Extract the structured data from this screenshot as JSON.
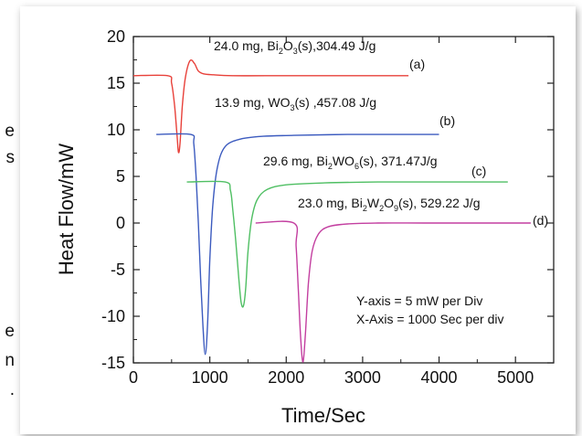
{
  "page_edge_text": [
    "e",
    "s",
    "e",
    "n",
    "."
  ],
  "chart_data": {
    "type": "line",
    "title": "",
    "xlabel": "Time/Sec",
    "ylabel": "Heat Flow/mW",
    "xlim": [
      0,
      5500
    ],
    "ylim": [
      -15,
      20
    ],
    "xticks": [
      "0",
      "1000",
      "2000",
      "3000",
      "4000",
      "5000"
    ],
    "yticks": [
      "20",
      "15",
      "10",
      "5",
      "0",
      "-5",
      "-10",
      "-15"
    ],
    "grid": false,
    "series": [
      {
        "name": "(a)",
        "color": "#e8413a",
        "x": [
          0,
          450,
          500,
          540,
          570,
          590,
          610,
          640,
          680,
          740,
          800,
          850,
          920,
          1050,
          1300,
          2000,
          2800,
          3600
        ],
        "y": [
          15.8,
          15.8,
          15.0,
          12.5,
          9.5,
          7.6,
          8.5,
          12.5,
          15.6,
          17.4,
          17.1,
          16.3,
          16.0,
          15.9,
          15.8,
          15.8,
          15.8,
          15.8
        ]
      },
      {
        "name": "(b)",
        "color": "#3c5bbf",
        "x": [
          300,
          750,
          790,
          820,
          850,
          880,
          910,
          940,
          970,
          1000,
          1040,
          1100,
          1200,
          1400,
          1700,
          2100,
          2800,
          3500,
          4000
        ],
        "y": [
          9.5,
          9.5,
          8.5,
          5.0,
          0.0,
          -6.0,
          -11.0,
          -14.1,
          -11.0,
          -4.0,
          2.0,
          6.0,
          8.2,
          9.0,
          9.3,
          9.4,
          9.5,
          9.5,
          9.5
        ]
      },
      {
        "name": "(c)",
        "color": "#4fbf63",
        "x": [
          700,
          1200,
          1270,
          1300,
          1340,
          1380,
          1410,
          1440,
          1470,
          1500,
          1550,
          1620,
          1750,
          2000,
          2500,
          3200,
          4000,
          4900
        ],
        "y": [
          4.4,
          4.4,
          3.5,
          1.5,
          -2.0,
          -6.0,
          -8.5,
          -8.9,
          -7.0,
          -3.0,
          0.5,
          2.5,
          3.6,
          4.1,
          4.3,
          4.4,
          4.4,
          4.4
        ]
      },
      {
        "name": "(d)",
        "color": "#c33fa0",
        "x": [
          1600,
          2100,
          2130,
          2160,
          2190,
          2220,
          2250,
          2290,
          2340,
          2420,
          2550,
          2800,
          3200,
          3800,
          4500,
          5200
        ],
        "y": [
          0.0,
          0.0,
          -2.5,
          -7.5,
          -12.5,
          -14.9,
          -12.0,
          -6.5,
          -3.0,
          -1.2,
          -0.4,
          -0.1,
          0.0,
          0.0,
          0.0,
          0.0
        ]
      }
    ],
    "annotations": {
      "a": {
        "main": "24.0 mg, Bi",
        "s1": "2",
        "mid": "O",
        "s2": "3",
        "tail": "(s),304.49 J/g"
      },
      "b": {
        "main": "13.9 mg, WO",
        "s1": "3",
        "tail": "(s) ,457.08 J/g"
      },
      "c": {
        "main": "29.6 mg, Bi",
        "s1": "2",
        "mid": "WO",
        "s2": "6",
        "tail": "(s), 371.47J/g"
      },
      "d": {
        "main": "23.0 mg, Bi",
        "s1": "2",
        "mid": "W",
        "s2": "2",
        "mid2": "O",
        "s3": "9",
        "tail": "(s), 529.22 J/g"
      },
      "label_a": "(a)",
      "label_b": "(b)",
      "label_c": "(c)",
      "label_d": "(d)",
      "note1": "Y-axis = 5 mW per Div",
      "note2": "X-Axis = 1000 Sec per div"
    }
  }
}
